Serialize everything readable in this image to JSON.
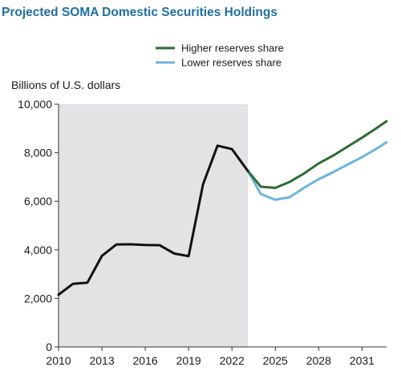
{
  "chart_data": {
    "type": "line",
    "title": "Projected SOMA Domestic Securities Holdings",
    "ylabel": "Billions of U.S. dollars",
    "xlabel": "",
    "xlim": [
      2010,
      2032.7
    ],
    "ylim": [
      0,
      10000
    ],
    "y_ticks": [
      0,
      2000,
      4000,
      6000,
      8000,
      10000
    ],
    "y_tick_labels": [
      "0",
      "2,000",
      "4,000",
      "6,000",
      "8,000",
      "10,000"
    ],
    "x_ticks": [
      2010,
      2013,
      2016,
      2019,
      2022,
      2025,
      2028,
      2031
    ],
    "x_tick_labels": [
      "2010",
      "2013",
      "2016",
      "2019",
      "2022",
      "2025",
      "2028",
      "2031"
    ],
    "grid": false,
    "shaded_region": {
      "x_start": 2010,
      "x_end": 2023.1,
      "color": "#e3e3e6"
    },
    "legend_position": "top-right",
    "colors": {
      "title": "#1f6f9f",
      "historical": "#111111",
      "higher": "#2e6b34",
      "lower": "#6db3e0"
    },
    "historical": {
      "x": [
        2010.0,
        2011.0,
        2012.0,
        2013.0,
        2014.0,
        2015.0,
        2016.0,
        2017.0,
        2018.0,
        2019.0,
        2020.0,
        2021.0,
        2022.0,
        2023.1
      ],
      "y": [
        2150,
        2600,
        2650,
        3750,
        4220,
        4230,
        4200,
        4190,
        3850,
        3740,
        6700,
        8290,
        8150,
        7250
      ]
    },
    "series": [
      {
        "name": "Higher reserves share",
        "color": "#2e6b34",
        "x": [
          2023.1,
          2024.0,
          2025.0,
          2026.0,
          2027.0,
          2028.0,
          2029.0,
          2030.0,
          2031.0,
          2032.0,
          2032.7
        ],
        "y": [
          7250,
          6600,
          6550,
          6800,
          7150,
          7560,
          7880,
          8250,
          8620,
          9010,
          9300
        ]
      },
      {
        "name": "Lower reserves share",
        "color": "#6db3e0",
        "x": [
          2023.1,
          2024.0,
          2025.0,
          2026.0,
          2027.0,
          2028.0,
          2029.0,
          2030.0,
          2031.0,
          2032.0,
          2032.7
        ],
        "y": [
          7250,
          6300,
          6060,
          6170,
          6560,
          6910,
          7200,
          7510,
          7820,
          8160,
          8430
        ]
      }
    ]
  }
}
